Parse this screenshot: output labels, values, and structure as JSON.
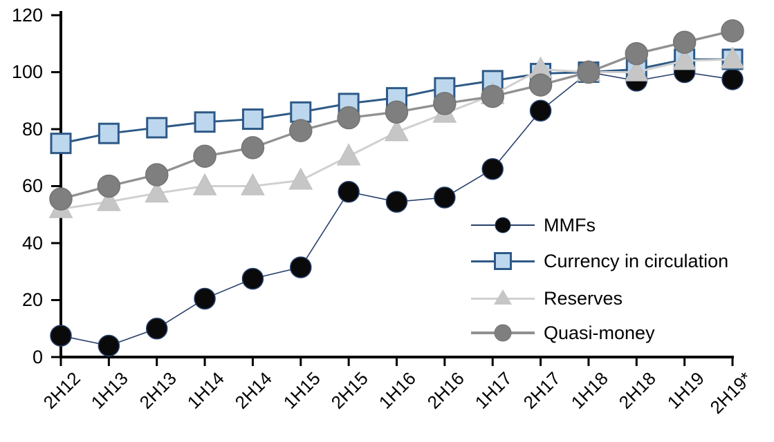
{
  "chart_data": {
    "type": "line",
    "title": "",
    "xlabel": "",
    "ylabel": "",
    "ylim": [
      0,
      120
    ],
    "yticks": [
      "0",
      "20",
      "40",
      "60",
      "80",
      "100",
      "120"
    ],
    "grid": false,
    "legend_position": "inside-right",
    "categories": [
      "2H12",
      "1H13",
      "2H13",
      "1H14",
      "2H14",
      "1H15",
      "2H15",
      "1H16",
      "2H16",
      "1H17",
      "2H17",
      "1H18",
      "2H18",
      "1H19",
      "2H19*"
    ],
    "series": [
      {
        "name": "MMFs",
        "marker": "circle",
        "marker_fill": "#0a0a0a",
        "marker_stroke": "#263f6a",
        "line_color": "#263f6a",
        "line_width": 1.6,
        "marker_size": 30,
        "values": [
          7.5,
          4,
          10,
          20.5,
          27.5,
          31.5,
          58,
          54.5,
          56,
          66,
          86.5,
          100,
          97,
          100,
          97.5
        ]
      },
      {
        "name": "Currency in circulation",
        "marker": "square",
        "marker_fill": "#bdd7ee",
        "marker_stroke": "#2d5986",
        "line_color": "#2d5986",
        "line_width": 3,
        "marker_size": 28,
        "values": [
          75,
          78.5,
          80.5,
          82.5,
          83.5,
          86,
          89,
          91,
          94.5,
          97,
          99.5,
          100,
          101,
          104.5,
          104.5
        ]
      },
      {
        "name": "Reserves",
        "marker": "triangle",
        "marker_fill": "#c6c6c6",
        "marker_stroke": "#bdbdbd",
        "line_color": "#d0d0d0",
        "line_width": 3,
        "marker_size": 33,
        "values": [
          52,
          54.5,
          57.5,
          60,
          60,
          62,
          70.5,
          79,
          85.5,
          92,
          101,
          100,
          100,
          104,
          104.5
        ]
      },
      {
        "name": "Quasi-money",
        "marker": "circle",
        "marker_fill": "#7f7f7f",
        "marker_stroke": "#737373",
        "line_color": "#919191",
        "line_width": 3.4,
        "marker_size": 32,
        "values": [
          55.5,
          60,
          64,
          70.5,
          73.5,
          79.5,
          84,
          86,
          89,
          91.5,
          95.5,
          100,
          106.5,
          110.5,
          114.5
        ]
      }
    ],
    "axis_color": "#000000"
  }
}
